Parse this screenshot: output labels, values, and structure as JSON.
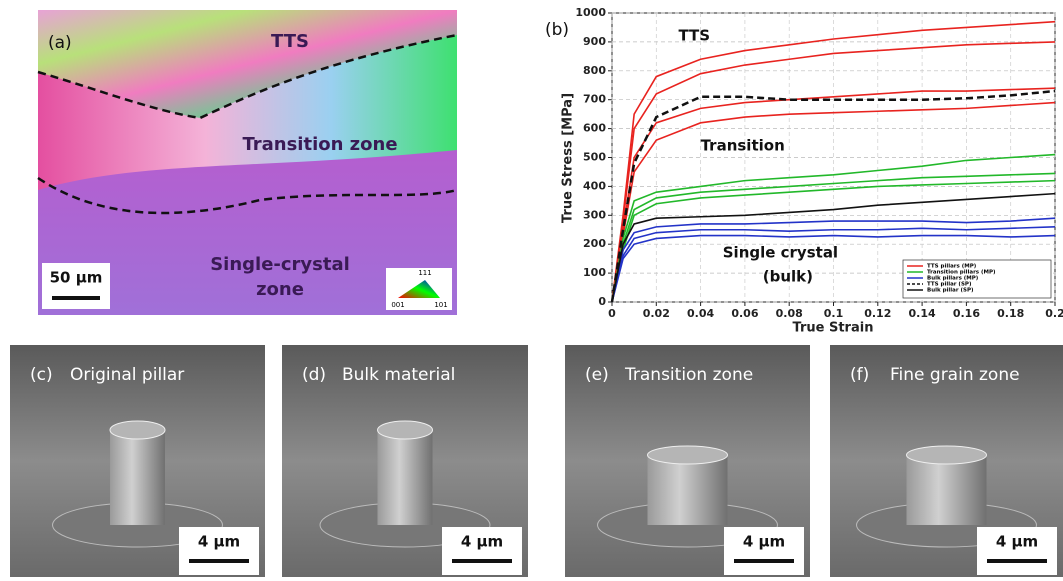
{
  "panel_a": {
    "label": "(a)",
    "zone_labels": {
      "tts": "TTS",
      "transition": "Transition zone",
      "single_crystal": [
        "Single-crystal",
        "zone"
      ]
    },
    "scale_bar": "50 µm",
    "ipf_labels": [
      "111",
      "001",
      "101"
    ]
  },
  "chart_data": {
    "type": "line",
    "label": "(b)",
    "xlabel": "True Strain",
    "ylabel": "True Stress [MPa]",
    "x": [
      0,
      0.005,
      0.01,
      0.02,
      0.04,
      0.06,
      0.08,
      0.1,
      0.12,
      0.14,
      0.16,
      0.18,
      0.2
    ],
    "series": [
      {
        "name": "TTS pillars (MP)",
        "color": "#e8231f",
        "dash": false,
        "curves": [
          [
            0,
            300,
            650,
            780,
            840,
            870,
            890,
            910,
            925,
            940,
            950,
            960,
            970
          ],
          [
            0,
            280,
            600,
            720,
            790,
            820,
            840,
            860,
            870,
            880,
            890,
            895,
            900
          ],
          [
            0,
            250,
            500,
            620,
            670,
            690,
            700,
            710,
            720,
            730,
            730,
            735,
            740
          ],
          [
            0,
            230,
            450,
            560,
            620,
            640,
            650,
            655,
            660,
            665,
            670,
            680,
            690
          ]
        ]
      },
      {
        "name": "Transition pillars (MP)",
        "color": "#22b82a",
        "dash": false,
        "curves": [
          [
            0,
            220,
            350,
            380,
            400,
            420,
            430,
            440,
            455,
            470,
            490,
            500,
            510
          ],
          [
            0,
            200,
            320,
            360,
            380,
            390,
            400,
            410,
            420,
            430,
            435,
            440,
            445
          ],
          [
            0,
            180,
            300,
            340,
            360,
            370,
            380,
            390,
            400,
            405,
            410,
            415,
            420
          ]
        ]
      },
      {
        "name": "Bulk pillars (MP)",
        "color": "#2333c8",
        "dash": false,
        "curves": [
          [
            0,
            180,
            240,
            260,
            270,
            270,
            275,
            280,
            280,
            280,
            275,
            280,
            290
          ],
          [
            0,
            160,
            220,
            240,
            250,
            250,
            245,
            250,
            250,
            255,
            250,
            255,
            260
          ],
          [
            0,
            150,
            200,
            220,
            230,
            230,
            225,
            230,
            225,
            230,
            230,
            225,
            230
          ]
        ]
      },
      {
        "name": "TTS pillar (SP)",
        "color": "#111111",
        "dash": true,
        "curves": [
          [
            0,
            250,
            480,
            640,
            710,
            710,
            700,
            700,
            700,
            700,
            705,
            715,
            730
          ]
        ]
      },
      {
        "name": "Bulk pillar (SP)",
        "color": "#111111",
        "dash": false,
        "curves": [
          [
            0,
            200,
            270,
            290,
            295,
            300,
            310,
            320,
            335,
            345,
            355,
            365,
            375
          ]
        ]
      }
    ],
    "xlim": [
      0,
      0.2
    ],
    "xticks": [
      0,
      0.02,
      0.04,
      0.06,
      0.08,
      0.1,
      0.12,
      0.14,
      0.16,
      0.18,
      0.2
    ],
    "ylim": [
      0,
      1000
    ],
    "yticks": [
      0,
      100,
      200,
      300,
      400,
      500,
      600,
      700,
      800,
      900,
      1000
    ],
    "grid": true,
    "legend": "lower right",
    "annotations": [
      {
        "text": [
          "TTS"
        ],
        "x": 0.03,
        "y": 920
      },
      {
        "text": [
          "Transition"
        ],
        "x": 0.04,
        "y": 540
      },
      {
        "text": [
          "Single crystal",
          "(bulk)"
        ],
        "x": 0.05,
        "y": 170
      }
    ]
  },
  "image_panels": [
    {
      "label": "(c)",
      "caption": "Original pillar",
      "scale_bar": "4 µm"
    },
    {
      "label": "(d)",
      "caption": "Bulk material",
      "scale_bar": "4 µm"
    },
    {
      "label": "(e)",
      "caption": "Transition zone",
      "scale_bar": "4 µm"
    },
    {
      "label": "(f)",
      "caption": "Fine grain zone",
      "scale_bar": "4 µm"
    }
  ]
}
